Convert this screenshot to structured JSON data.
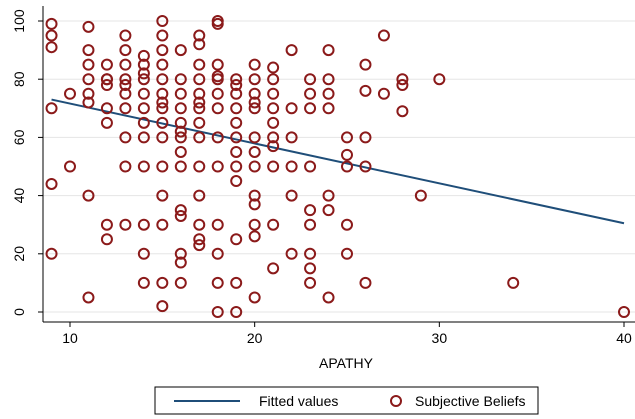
{
  "chart_data": {
    "type": "scatter",
    "xlabel": "APATHY",
    "ylabel": "",
    "xlim": [
      9,
      40
    ],
    "ylim": [
      0,
      100
    ],
    "xticks": [
      10,
      20,
      30,
      40
    ],
    "yticks": [
      0,
      20,
      40,
      60,
      80,
      100
    ],
    "grid": "horizontal",
    "legend_placement": "bottom",
    "legend": [
      "Fitted values",
      "Subjective Beliefs"
    ],
    "colors": {
      "fitted": "#1f4e79",
      "points": "#8b1a1a",
      "grid": "#e5e5e5"
    },
    "series": [
      {
        "name": "Fitted values",
        "type": "line",
        "x": [
          9,
          40
        ],
        "y": [
          73,
          30.5
        ]
      },
      {
        "name": "Subjective Beliefs",
        "type": "scatter",
        "x": [
          9,
          9,
          9,
          9,
          9,
          9,
          10,
          10,
          11,
          11,
          11,
          11,
          11,
          11,
          11,
          11,
          12,
          12,
          12,
          12,
          12,
          12,
          12,
          12,
          13,
          13,
          13,
          13,
          13,
          13,
          13,
          13,
          13,
          13,
          14,
          14,
          14,
          14,
          14,
          14,
          14,
          14,
          14,
          14,
          14,
          14,
          15,
          15,
          15,
          15,
          15,
          15,
          15,
          15,
          15,
          15,
          15,
          15,
          15,
          15,
          15,
          16,
          16,
          16,
          16,
          16,
          16,
          16,
          16,
          16,
          16,
          16,
          16,
          16,
          16,
          17,
          17,
          17,
          17,
          17,
          17,
          17,
          17,
          17,
          17,
          17,
          17,
          17,
          17,
          18,
          18,
          18,
          18,
          18,
          18,
          18,
          18,
          18,
          18,
          18,
          18,
          18,
          19,
          19,
          19,
          19,
          19,
          19,
          19,
          19,
          19,
          19,
          19,
          19,
          20,
          20,
          20,
          20,
          20,
          20,
          20,
          20,
          20,
          20,
          20,
          20,
          20,
          21,
          21,
          21,
          21,
          21,
          21,
          21,
          21,
          21,
          21,
          22,
          22,
          22,
          22,
          22,
          22,
          23,
          23,
          23,
          23,
          23,
          23,
          23,
          23,
          23,
          24,
          24,
          24,
          24,
          24,
          24,
          24,
          25,
          25,
          25,
          25,
          25,
          26,
          26,
          26,
          26,
          26,
          27,
          27,
          28,
          28,
          28,
          29,
          30,
          34,
          40
        ],
        "y": [
          99,
          95,
          91,
          70,
          44,
          20,
          75,
          50,
          98,
          90,
          85,
          80,
          75,
          72,
          40,
          5,
          85,
          80,
          78,
          70,
          65,
          30,
          25,
          80,
          95,
          90,
          85,
          80,
          78,
          75,
          70,
          60,
          50,
          30,
          88,
          85,
          82,
          80,
          75,
          70,
          65,
          60,
          50,
          30,
          20,
          10,
          100,
          95,
          90,
          85,
          80,
          75,
          72,
          70,
          65,
          60,
          50,
          40,
          30,
          10,
          2,
          90,
          80,
          75,
          70,
          65,
          60,
          55,
          50,
          35,
          33,
          20,
          17,
          10,
          62,
          95,
          92,
          85,
          80,
          75,
          72,
          70,
          65,
          60,
          50,
          40,
          30,
          25,
          23,
          100,
          99,
          85,
          81,
          80,
          75,
          70,
          60,
          50,
          30,
          20,
          10,
          0,
          80,
          78,
          75,
          70,
          65,
          60,
          55,
          50,
          45,
          25,
          10,
          0,
          85,
          80,
          75,
          72,
          70,
          60,
          55,
          50,
          40,
          37,
          30,
          26,
          5,
          84,
          80,
          75,
          70,
          65,
          60,
          57,
          50,
          30,
          15,
          90,
          70,
          60,
          50,
          40,
          20,
          80,
          75,
          70,
          50,
          35,
          30,
          20,
          15,
          10,
          90,
          80,
          75,
          70,
          40,
          35,
          5,
          60,
          54,
          50,
          30,
          20,
          85,
          76,
          60,
          50,
          10,
          95,
          75,
          80,
          78,
          69,
          40,
          80,
          10,
          0
        ]
      }
    ]
  }
}
